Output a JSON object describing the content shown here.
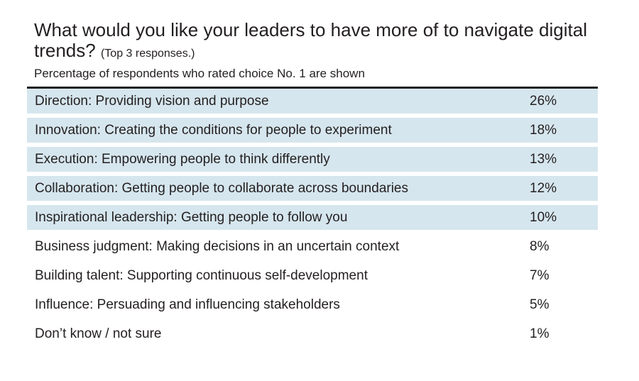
{
  "header": {
    "title": "What would you like your leaders to have more of to navigate digital trends?",
    "title_note": "(Top 3 responses.)",
    "subtitle": "Percentage of respondents who rated choice No. 1 are shown"
  },
  "colors": {
    "row_shade": "#d6e6ee",
    "rule": "#231f20",
    "text": "#231f20"
  },
  "chart_data": {
    "type": "table",
    "title": "What would you like your leaders to have more of to navigate digital trends?",
    "subtitle": "Percentage of respondents who rated choice No. 1 are shown",
    "rows": [
      {
        "label": "Direction: Providing vision and purpose",
        "value": "26%",
        "shaded": true
      },
      {
        "label": "Innovation: Creating the conditions for people to experiment",
        "value": "18%",
        "shaded": true
      },
      {
        "label": "Execution: Empowering people to think differently",
        "value": "13%",
        "shaded": true
      },
      {
        "label": "Collaboration: Getting people to collaborate across boundaries",
        "value": "12%",
        "shaded": true
      },
      {
        "label": "Inspirational leadership: Getting people to follow you",
        "value": "10%",
        "shaded": true
      },
      {
        "label": "Business judgment: Making decisions in an uncertain context",
        "value": "8%",
        "shaded": false
      },
      {
        "label": "Building talent: Supporting continuous self-development",
        "value": "7%",
        "shaded": false
      },
      {
        "label": "Influence: Persuading and influencing stakeholders",
        "value": "5%",
        "shaded": false
      },
      {
        "label": "Don’t know / not sure",
        "value": "1%",
        "shaded": false
      }
    ]
  }
}
